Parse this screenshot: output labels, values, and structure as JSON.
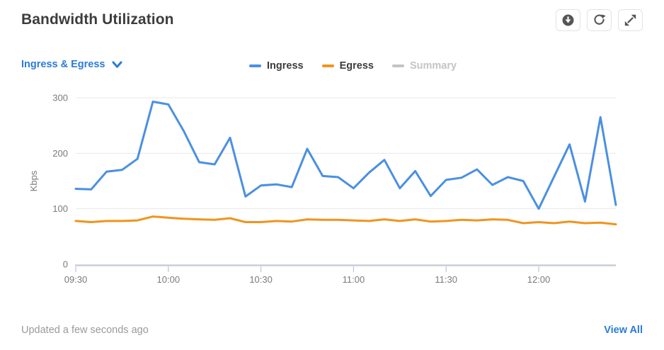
{
  "header": {
    "title": "Bandwidth Utilization"
  },
  "controls": {
    "selector": {
      "label": "Ingress & Egress",
      "icon": "chevron-down-icon"
    }
  },
  "legend": [
    {
      "label": "Ingress",
      "color": "#4a90e2",
      "active": true
    },
    {
      "label": "Egress",
      "color": "#f0941e",
      "active": true
    },
    {
      "label": "Summary",
      "color": "#c4c4c4",
      "active": false
    }
  ],
  "icons": {
    "download": "download-icon",
    "refresh": "refresh-icon",
    "expand": "expand-icon"
  },
  "colors": {
    "link": "#2a7cd9",
    "title_text": "#3d3d3d",
    "axis_text": "#7a7a7a",
    "grid_line": "#e8e8e8",
    "axis_line": "#c9ced6",
    "tick_mark": "#b9c5e6",
    "muted_text": "#9a9a9a",
    "icon": "#555555",
    "button_border": "#e3e3e3"
  },
  "footer": {
    "updated": "Updated a few seconds ago",
    "view_all": "View All"
  },
  "chart_data": {
    "type": "line",
    "title": "Bandwidth Utilization",
    "xlabel": "",
    "ylabel": "Kbps",
    "ylim": [
      0,
      300
    ],
    "yticks": [
      0,
      100,
      200,
      300
    ],
    "grid": "horizontal",
    "legend_position": "top",
    "x": [
      "09:30",
      "09:35",
      "09:40",
      "09:45",
      "09:50",
      "09:55",
      "10:00",
      "10:05",
      "10:10",
      "10:15",
      "10:20",
      "10:25",
      "10:30",
      "10:35",
      "10:40",
      "10:45",
      "10:50",
      "10:55",
      "11:00",
      "11:05",
      "11:10",
      "11:15",
      "11:20",
      "11:25",
      "11:30",
      "11:35",
      "11:40",
      "11:45",
      "11:50",
      "11:55",
      "12:00",
      "12:05",
      "12:10",
      "12:15",
      "12:20",
      "12:25"
    ],
    "xticks": [
      "09:30",
      "10:00",
      "10:30",
      "11:00",
      "11:30",
      "12:00"
    ],
    "series": [
      {
        "name": "Ingress",
        "color": "#4a90e2",
        "values": [
          136,
          135,
          167,
          170,
          190,
          293,
          288,
          240,
          184,
          180,
          228,
          122,
          142,
          144,
          139,
          208,
          159,
          157,
          137,
          165,
          188,
          137,
          168,
          123,
          152,
          156,
          171,
          143,
          157,
          150,
          100,
          158,
          216,
          113,
          265,
          107
        ]
      },
      {
        "name": "Egress",
        "color": "#f0941e",
        "values": [
          78,
          76,
          78,
          78,
          79,
          86,
          84,
          82,
          81,
          80,
          83,
          76,
          76,
          78,
          77,
          81,
          80,
          80,
          79,
          78,
          81,
          78,
          81,
          77,
          78,
          80,
          79,
          81,
          80,
          74,
          76,
          74,
          77,
          74,
          75,
          72
        ]
      }
    ]
  }
}
